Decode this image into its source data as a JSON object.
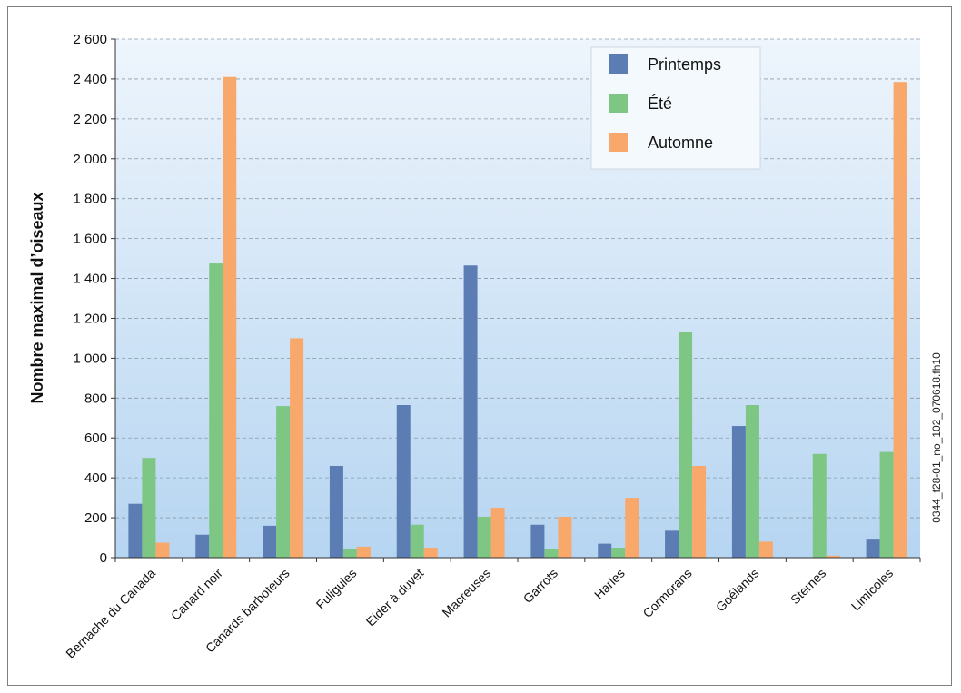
{
  "chart_data": {
    "type": "bar",
    "ylabel": "Nombre maximal d’oiseaux",
    "xlabel": "",
    "ylim": [
      0,
      2600
    ],
    "ytick_step": 200,
    "ytick_labels": [
      "0",
      "200",
      "400",
      "600",
      "800",
      "1 000",
      "1 200",
      "1 400",
      "1 600",
      "1 800",
      "2 000",
      "2 200",
      "2 400",
      "2 600"
    ],
    "grid": "horizontal-dashed",
    "legend_position": "top-right",
    "categories": [
      "Bernache du Canada",
      "Canard noir",
      "Canards barboteurs",
      "Fuligules",
      "Eider à duvet",
      "Macreuses",
      "Garrots",
      "Harles",
      "Cormorans",
      "Goélands",
      "Sternes",
      "Limicoles"
    ],
    "series": [
      {
        "name": "Printemps",
        "color": "#5b7db4",
        "values": [
          270,
          115,
          160,
          460,
          765,
          1465,
          165,
          70,
          135,
          660,
          0,
          95
        ]
      },
      {
        "name": "Été",
        "color": "#7dc683",
        "values": [
          500,
          1475,
          760,
          45,
          165,
          205,
          45,
          50,
          1130,
          765,
          520,
          530
        ]
      },
      {
        "name": "Automne",
        "color": "#f9a86c",
        "values": [
          75,
          2410,
          1100,
          55,
          50,
          250,
          205,
          300,
          460,
          80,
          10,
          2385
        ]
      }
    ],
    "side_note": "0344_f28-01_no_102_070618.fh10"
  }
}
